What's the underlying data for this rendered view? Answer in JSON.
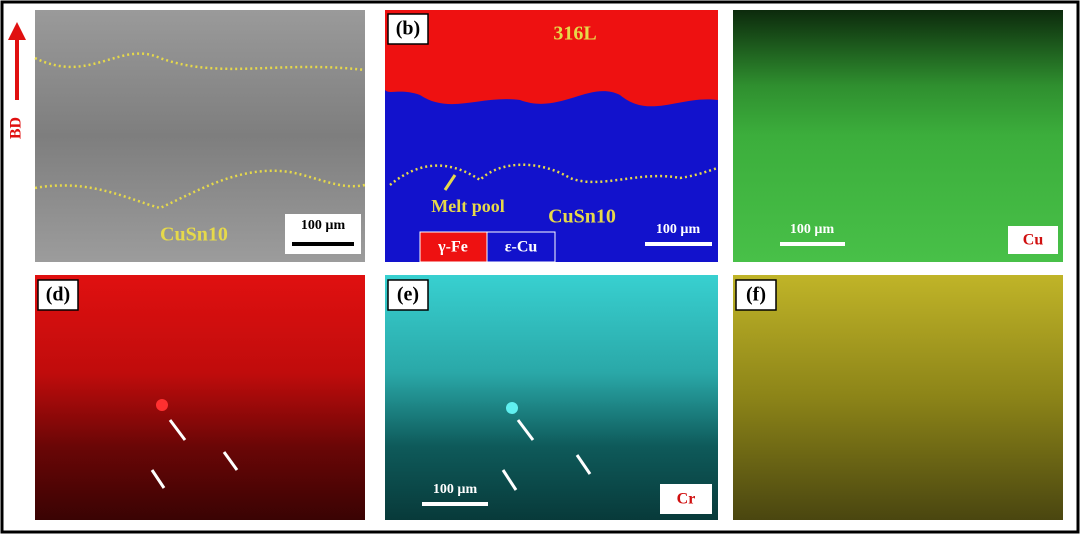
{
  "build_direction": "BD",
  "panel_a": {
    "material": "CuSn10",
    "scale_bar": "100 µm"
  },
  "panel_b": {
    "label": "(b)",
    "top_material": "316L",
    "annotation": "Melt pool",
    "bottom_material": "CuSn10",
    "scale_bar": "100 µm",
    "legend": [
      "γ-Fe",
      "ε-Cu"
    ]
  },
  "panel_c": {
    "scale_bar": "100 µm",
    "element": "Cu"
  },
  "panel_d": {
    "label": "(d)"
  },
  "panel_e": {
    "label": "(e)",
    "scale_bar": "100 µm",
    "element": "Cr"
  },
  "panel_f": {
    "label": "(f)"
  }
}
